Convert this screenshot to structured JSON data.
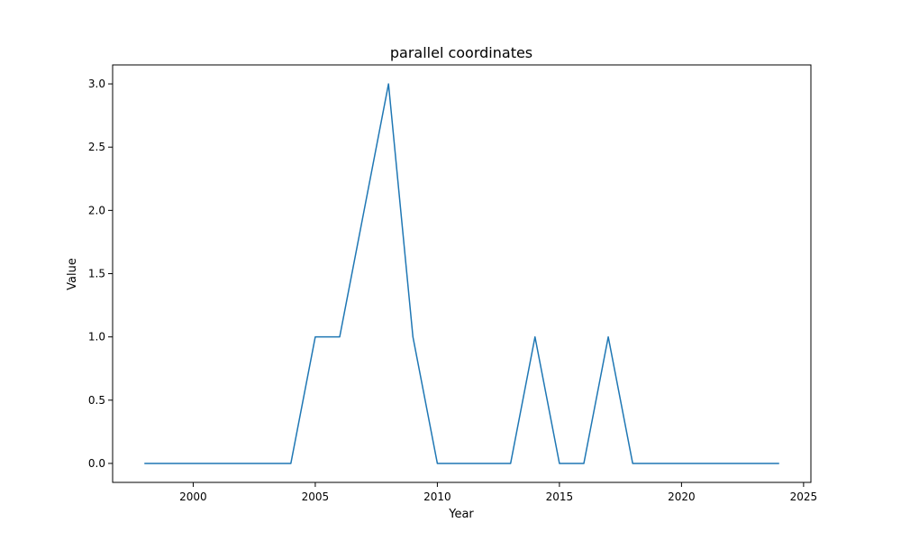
{
  "chart_data": {
    "type": "line",
    "title": "parallel coordinates",
    "xlabel": "Year",
    "ylabel": "Value",
    "xlim": [
      1996.7,
      2025.3
    ],
    "ylim": [
      -0.15,
      3.15
    ],
    "xticks": [
      2000,
      2005,
      2010,
      2015,
      2020,
      2025
    ],
    "yticks": [
      0.0,
      0.5,
      1.0,
      1.5,
      2.0,
      2.5,
      3.0
    ],
    "xtick_labels": [
      "2000",
      "2005",
      "2010",
      "2015",
      "2020",
      "2025"
    ],
    "ytick_labels": [
      "0.0",
      "0.5",
      "1.0",
      "1.5",
      "2.0",
      "2.5",
      "3.0"
    ],
    "grid": false,
    "series": [
      {
        "color": "#1f77b4",
        "x": [
          1998,
          1999,
          2000,
          2001,
          2002,
          2003,
          2004,
          2005,
          2006,
          2007,
          2008,
          2009,
          2010,
          2011,
          2012,
          2013,
          2014,
          2015,
          2016,
          2017,
          2018,
          2019,
          2020,
          2021,
          2022,
          2023,
          2024
        ],
        "values": [
          0,
          0,
          0,
          0,
          0,
          0,
          0,
          1,
          1,
          2,
          3,
          1,
          0,
          0,
          0,
          0,
          1,
          0,
          0,
          1,
          0,
          0,
          0,
          0,
          0,
          0,
          0
        ]
      }
    ]
  }
}
